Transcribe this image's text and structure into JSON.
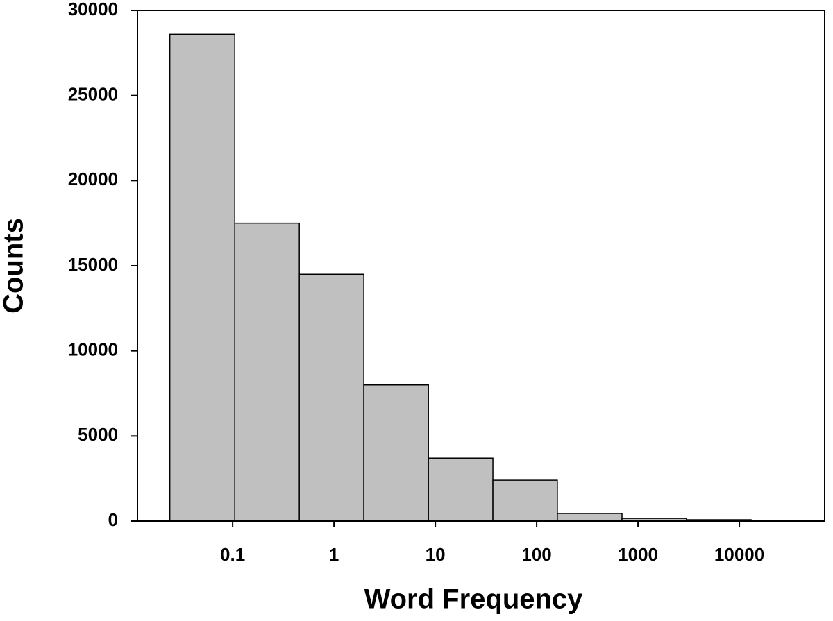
{
  "chart_data": {
    "type": "histogram",
    "x_label": "Word Frequency",
    "y_label": "Counts",
    "bins": [
      0.024,
      0.105,
      0.455,
      1.97,
      8.55,
      37,
      160,
      695,
      3010,
      13060,
      56600
    ],
    "values": [
      28600,
      17500,
      14500,
      8000,
      3700,
      2400,
      450,
      160,
      80,
      20
    ],
    "color": "#c0c0c0",
    "xscale": "log",
    "xlim": [
      0.0115,
      69500
    ],
    "xticks": [
      0.1,
      1,
      10,
      100,
      1000,
      10000
    ],
    "ylim": [
      0,
      30000
    ],
    "yticks": [
      0,
      5000,
      10000,
      15000,
      20000,
      25000,
      30000
    ],
    "grid": false
  }
}
